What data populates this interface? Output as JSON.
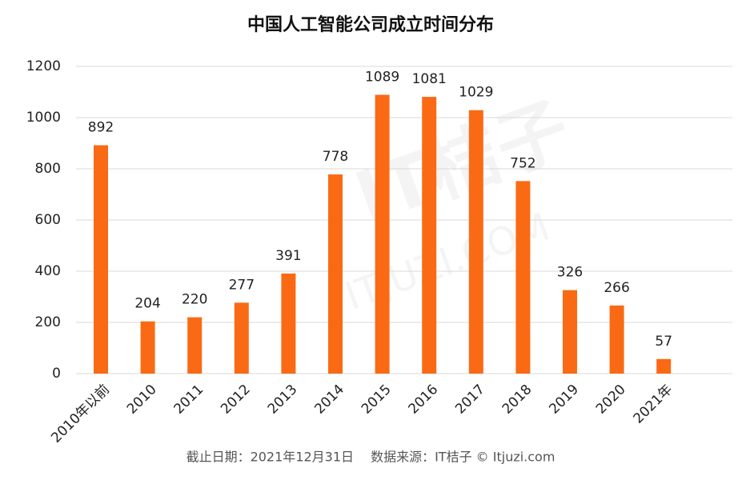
{
  "chart_data": {
    "type": "bar",
    "title": "中国人工智能公司成立时间分布",
    "categories": [
      "2010年以前",
      "2010",
      "2011",
      "2012",
      "2013",
      "2014",
      "2015",
      "2016",
      "2017",
      "2018",
      "2019",
      "2020",
      "2021年"
    ],
    "values": [
      892,
      204,
      220,
      277,
      391,
      778,
      1089,
      1081,
      1029,
      752,
      326,
      266,
      57
    ],
    "color": "#fa6a14",
    "ylim": [
      0,
      1200
    ],
    "yticks": [
      0,
      200,
      400,
      600,
      800,
      1000,
      1200
    ],
    "grid": true,
    "watermark": [
      "IT桔子",
      "ITJUZI.COM"
    ],
    "note": "截止日期：2021年12月31日　 数据来源：IT桔子 © Itjuzi.com"
  }
}
